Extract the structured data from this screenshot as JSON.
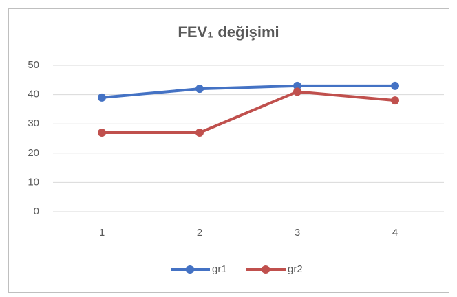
{
  "chart_data": {
    "type": "line",
    "title": "FEV₁ değişimi",
    "categories": [
      "1",
      "2",
      "3",
      "4"
    ],
    "series": [
      {
        "name": "gr1",
        "color": "#4472c4",
        "values": [
          39,
          42,
          43,
          43
        ]
      },
      {
        "name": "gr2",
        "color": "#c0504d",
        "values": [
          27,
          27,
          41,
          38
        ]
      }
    ],
    "ylim": [
      0,
      50
    ],
    "yticks": [
      0,
      10,
      20,
      30,
      40,
      50
    ],
    "grid": true,
    "legend": "bottom"
  }
}
